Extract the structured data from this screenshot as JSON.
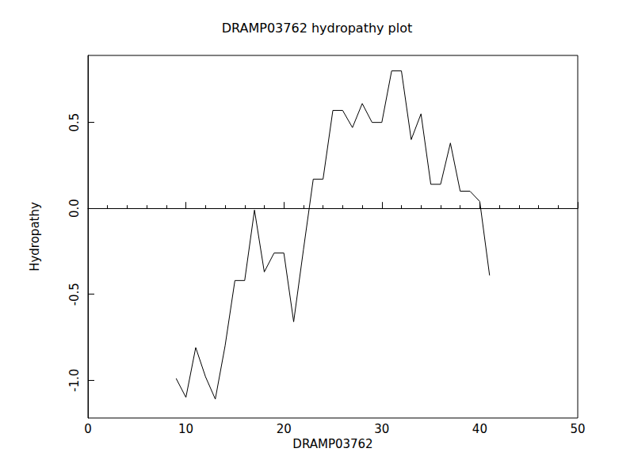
{
  "chart_data": {
    "type": "line",
    "title": "DRAMP03762 hydropathy plot",
    "x_label": "DRAMP03762",
    "y_label": "Hydropathy",
    "x": [
      9,
      10,
      11,
      12,
      13,
      14,
      15,
      16,
      17,
      18,
      19,
      20,
      21,
      22,
      23,
      24,
      25,
      26,
      27,
      28,
      29,
      30,
      31,
      32,
      33,
      34,
      35,
      36,
      37,
      38,
      39,
      40,
      41
    ],
    "values": [
      -0.99,
      -1.1,
      -0.81,
      -0.98,
      -1.11,
      -0.8,
      -0.42,
      -0.42,
      -0.01,
      -0.37,
      -0.26,
      -0.26,
      -0.66,
      -0.24,
      0.17,
      0.17,
      0.57,
      0.57,
      0.47,
      0.61,
      0.5,
      0.5,
      0.8,
      0.8,
      0.4,
      0.55,
      0.14,
      0.14,
      0.38,
      0.1,
      0.1,
      0.04,
      -0.39
    ],
    "color": "#000000",
    "xlim": [
      0,
      50
    ],
    "xticks": [
      0,
      10,
      20,
      30,
      40,
      50
    ],
    "ylim": [
      -1.22,
      0.89
    ],
    "yticks": [
      {
        "value": -1.0,
        "label": "-1.0"
      },
      {
        "value": -0.5,
        "label": "-0.5"
      },
      {
        "value": 0.0,
        "label": "0.0"
      },
      {
        "value": 0.5,
        "label": "0.5"
      }
    ],
    "grid": false
  }
}
